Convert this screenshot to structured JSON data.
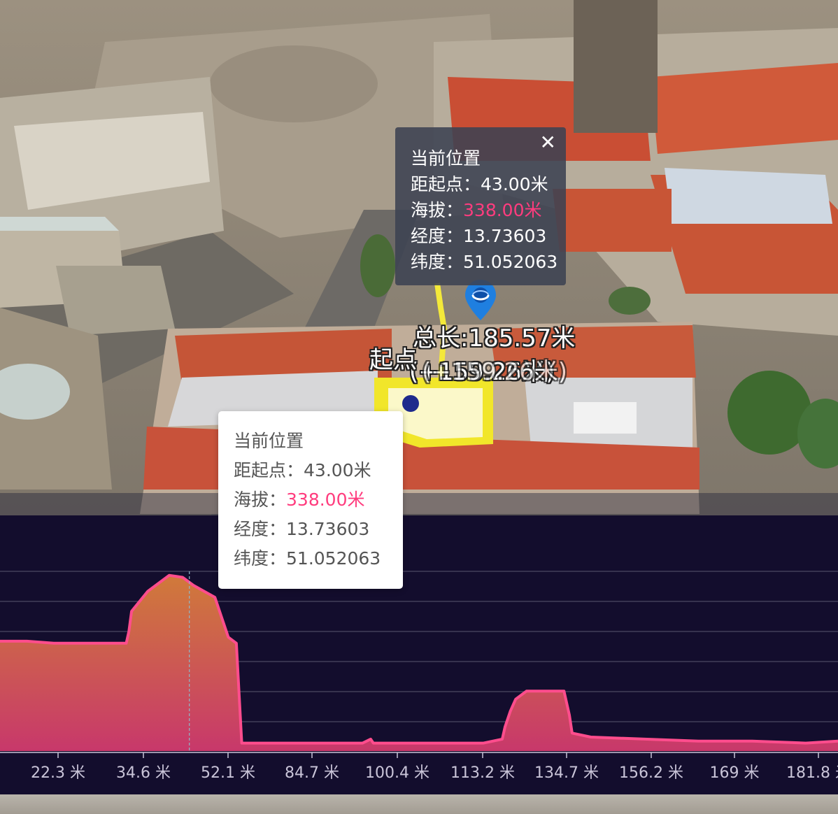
{
  "map": {
    "total_length_label": "总长:185.57米",
    "segment_label": "(+159.26米)",
    "overlap_label": "(+159.26米)",
    "start_label": "起点",
    "popup": {
      "title": "当前位置",
      "distance_label": "距起点：",
      "distance_value": "43.00米",
      "altitude_label": "海拔：",
      "altitude_value": "338.00米",
      "longitude_label": "经度：",
      "longitude_value": "13.73603",
      "latitude_label": "纬度：",
      "latitude_value": "51.052063",
      "close_icon": "close-icon"
    }
  },
  "tooltip": {
    "title": "当前位置",
    "distance_label": "距起点：",
    "distance_value": "43.00米",
    "altitude_label": "海拔：",
    "altitude_value": "338.00米",
    "longitude_label": "经度：",
    "longitude_value": "13.73603",
    "latitude_label": "纬度：",
    "latitude_value": "51.052063"
  },
  "colors": {
    "chart_bg": "#130d2d",
    "line": "#ff4d8d",
    "area_top": "#d07a3a",
    "area_bottom": "#c8386b",
    "grid": "#5a5670",
    "highlight": "#ff3c7e"
  },
  "chart_data": {
    "type": "area",
    "x_tick_labels": [
      "22.3 米",
      "34.6 米",
      "52.1 米",
      "84.7 米",
      "100.4 米",
      "113.2 米",
      "134.7 米",
      "156.2 米",
      "169 米",
      "181.8 米"
    ],
    "series": [
      {
        "values": [
          [
            0,
            305
          ],
          [
            10,
            305
          ],
          [
            20,
            304
          ],
          [
            30,
            304
          ],
          [
            40,
            304
          ],
          [
            47,
            304
          ],
          [
            48,
            310
          ],
          [
            49,
            320
          ],
          [
            55,
            330
          ],
          [
            63,
            338
          ],
          [
            68,
            337
          ],
          [
            72,
            333
          ],
          [
            80,
            327
          ],
          [
            85,
            307
          ],
          [
            88,
            304
          ],
          [
            90,
            254
          ],
          [
            100,
            254
          ],
          [
            120,
            254
          ],
          [
            135,
            254
          ],
          [
            138,
            256
          ],
          [
            139,
            254
          ],
          [
            145,
            254
          ],
          [
            160,
            254
          ],
          [
            180,
            254
          ],
          [
            187,
            256
          ],
          [
            188,
            262
          ],
          [
            190,
            270
          ],
          [
            192,
            276
          ],
          [
            196,
            280
          ],
          [
            205,
            280
          ],
          [
            210,
            280
          ],
          [
            212,
            268
          ],
          [
            213,
            259
          ],
          [
            220,
            257
          ],
          [
            240,
            256
          ],
          [
            260,
            255
          ],
          [
            280,
            255
          ],
          [
            300,
            254
          ],
          [
            312,
            255
          ]
        ]
      }
    ],
    "highlight_x": 43
  }
}
